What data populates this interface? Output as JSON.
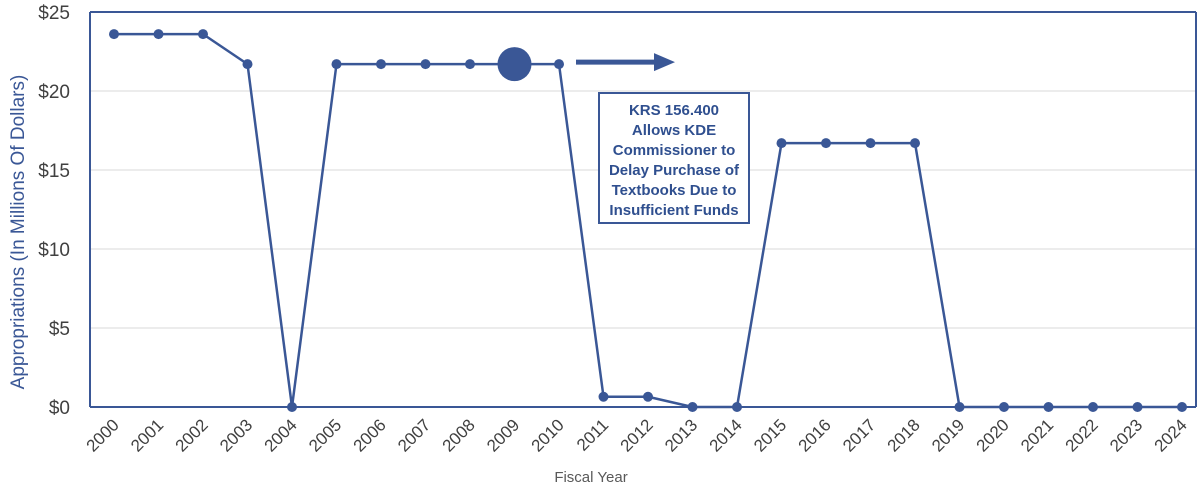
{
  "colors": {
    "series": "#3A5796",
    "grid": "#D9D9D9",
    "axis": "#3A5796",
    "ylabel": "#3A5796",
    "annotation_text": "#2F4F8F"
  },
  "chart_data": {
    "type": "line",
    "title": "",
    "xlabel": "Fiscal Year",
    "ylabel": "Appropriations (In Millions Of Dollars)",
    "ylim": [
      0,
      25
    ],
    "yticks": [
      0,
      5,
      10,
      15,
      20,
      25
    ],
    "ytick_labels": [
      "$0",
      "$5",
      "$10",
      "$15",
      "$20",
      "$25"
    ],
    "x": [
      "2000",
      "2001",
      "2002",
      "2003",
      "2004",
      "2005",
      "2006",
      "2007",
      "2008",
      "2009",
      "2010",
      "2011",
      "2012",
      "2013",
      "2014",
      "2015",
      "2016",
      "2017",
      "2018",
      "2019",
      "2020",
      "2021",
      "2022",
      "2023",
      "2024"
    ],
    "series": [
      {
        "values": [
          23.6,
          23.6,
          23.6,
          21.7,
          0,
          21.7,
          21.7,
          21.7,
          21.7,
          21.7,
          21.7,
          0.65,
          0.65,
          0,
          0,
          16.7,
          16.7,
          16.7,
          16.7,
          0,
          0,
          0,
          0,
          0,
          0
        ]
      }
    ],
    "grid": "horizontal",
    "highlight": {
      "x": "2009",
      "marker": "large-circle"
    },
    "annotation": {
      "lines": [
        "KRS 156.400",
        "Allows KDE",
        "Commissioner to",
        "Delay Purchase of",
        "Textbooks Due to",
        "Insufficient Funds"
      ],
      "arrow": "right"
    }
  }
}
